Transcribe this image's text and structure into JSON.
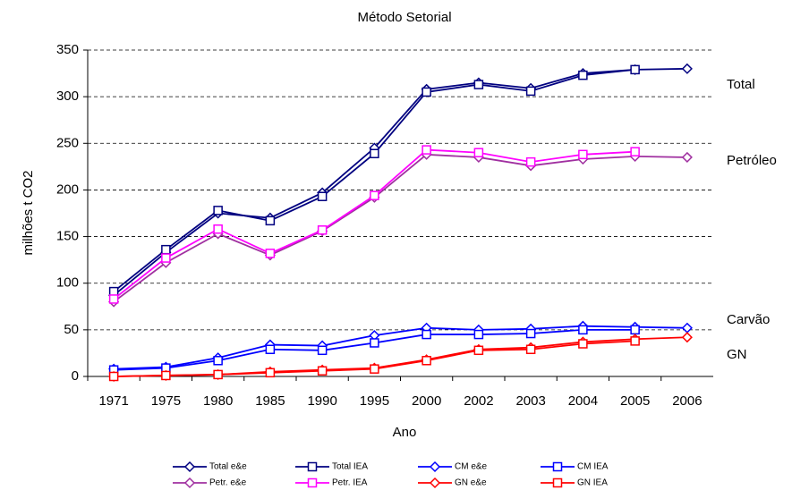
{
  "chart_data": {
    "type": "line",
    "title": "Método  Setorial",
    "x_label": "Ano",
    "y_label": "milhões t CO2",
    "categories": [
      "1971",
      "1975",
      "1980",
      "1985",
      "1990",
      "1995",
      "2000",
      "2002",
      "2003",
      "2004",
      "2005",
      "2006"
    ],
    "ylim": [
      0,
      350
    ],
    "yticks": [
      0,
      50,
      100,
      150,
      200,
      250,
      300,
      350
    ],
    "grid": true,
    "series": [
      {
        "name": "Total e&e",
        "color": "#000080",
        "marker": "diamond",
        "values": [
          87,
          133,
          175,
          170,
          197,
          245,
          308,
          315,
          309,
          325,
          329,
          330
        ]
      },
      {
        "name": "Total IEA",
        "color": "#000080",
        "marker": "square",
        "values": [
          91,
          136,
          178,
          167,
          193,
          239,
          305,
          313,
          306,
          323,
          329,
          null
        ]
      },
      {
        "name": "CM e&e",
        "color": "#0000ff",
        "marker": "diamond",
        "values": [
          8,
          10,
          20,
          34,
          33,
          44,
          52,
          50,
          51,
          54,
          53,
          52
        ]
      },
      {
        "name": "CM IEA",
        "color": "#0000ff",
        "marker": "square",
        "values": [
          7,
          9,
          17,
          29,
          28,
          36,
          45,
          45,
          46,
          50,
          50,
          null
        ]
      },
      {
        "name": "Petr. e&e",
        "color": "#a030a0",
        "marker": "diamond",
        "values": [
          80,
          122,
          153,
          130,
          156,
          192,
          238,
          235,
          226,
          233,
          236,
          235
        ]
      },
      {
        "name": "Petr. IEA",
        "color": "#ff00ff",
        "marker": "square",
        "values": [
          83,
          127,
          158,
          132,
          157,
          194,
          243,
          240,
          230,
          238,
          241,
          null
        ]
      },
      {
        "name": "GN e&e",
        "color": "#ff0000",
        "marker": "diamond",
        "values": [
          0,
          1,
          2,
          5,
          7,
          9,
          18,
          29,
          31,
          37,
          40,
          42
        ]
      },
      {
        "name": "GN IEA",
        "color": "#ff0000",
        "marker": "square",
        "values": [
          0,
          1,
          2,
          4,
          6,
          8,
          17,
          28,
          29,
          35,
          38,
          null
        ]
      }
    ],
    "annotations": [
      "Total",
      "Petróleo",
      "Carvão",
      "GN"
    ]
  }
}
